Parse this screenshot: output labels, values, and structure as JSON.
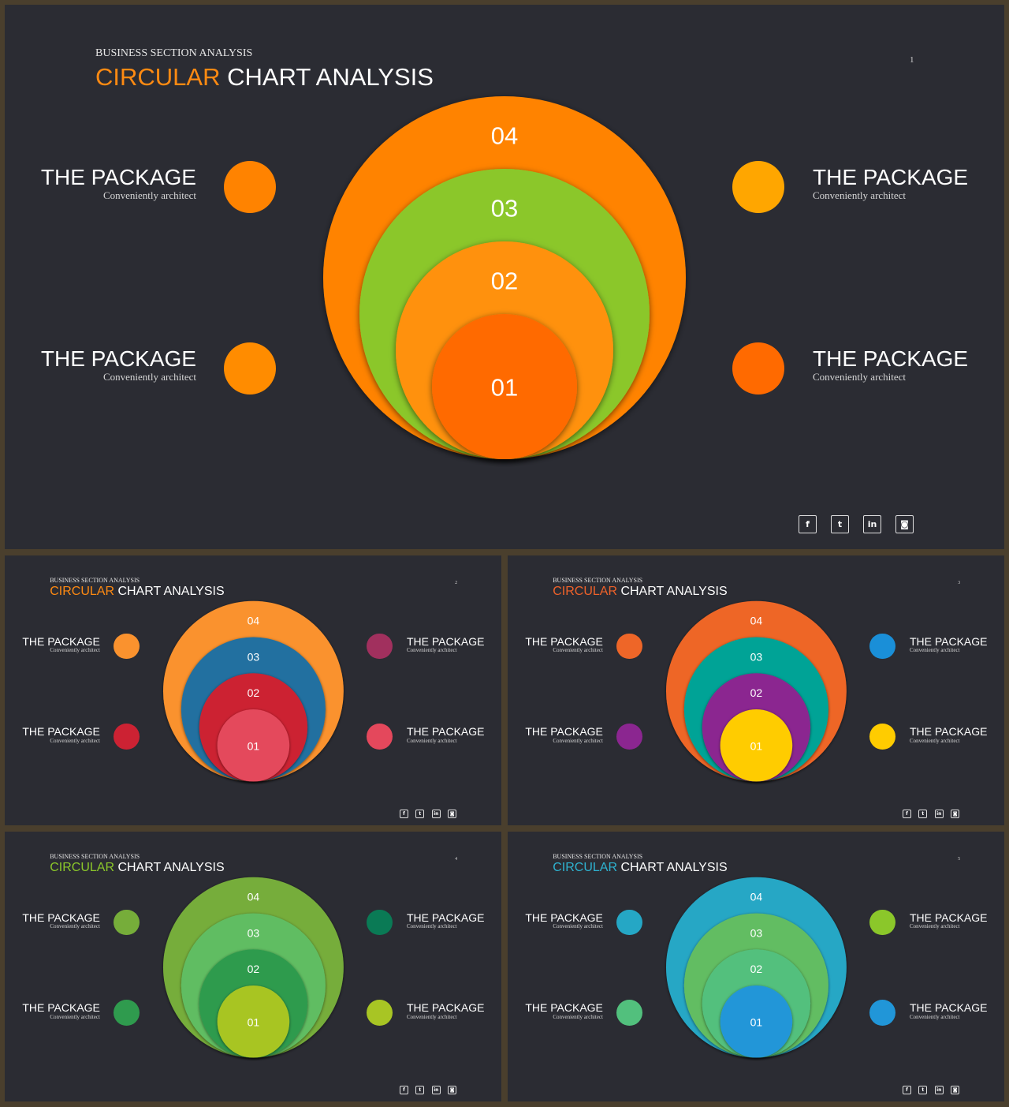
{
  "slides": [
    {
      "subtitle": "BUSINESS SECTION ANALYSIS",
      "title_accent": "CIRCULAR",
      "title_rest": " CHART ANALYSIS",
      "page": "1",
      "accent": "#ff8a12",
      "rings": [
        {
          "label": "04",
          "color": "#ff8300"
        },
        {
          "label": "03",
          "color": "#8bc72a"
        },
        {
          "label": "02",
          "color": "#ff9108"
        },
        {
          "label": "01",
          "color": "#ff6a00"
        }
      ],
      "items": [
        {
          "title": "THE PACKAGE",
          "desc": "Conveniently architect",
          "color": "#ff8300"
        },
        {
          "title": "THE PACKAGE",
          "desc": "Conveniently architect",
          "color": "#ffa600"
        },
        {
          "title": "THE PACKAGE",
          "desc": "Conveniently architect",
          "color": "#ff8c00"
        },
        {
          "title": "THE PACKAGE",
          "desc": "Conveniently architect",
          "color": "#ff6a00"
        }
      ]
    },
    {
      "subtitle": "BUSINESS SECTION ANALYSIS",
      "title_accent": "CIRCULAR",
      "title_rest": " CHART ANALYSIS",
      "page": "2",
      "accent": "#ff8a12",
      "rings": [
        {
          "label": "04",
          "color": "#fa922e"
        },
        {
          "label": "03",
          "color": "#2370a0"
        },
        {
          "label": "02",
          "color": "#cc2233"
        },
        {
          "label": "01",
          "color": "#e4485c"
        }
      ],
      "items": [
        {
          "title": "THE PACKAGE",
          "desc": "Conveniently architect",
          "color": "#fa922e"
        },
        {
          "title": "THE PACKAGE",
          "desc": "Conveniently architect",
          "color": "#a1305e"
        },
        {
          "title": "THE PACKAGE",
          "desc": "Conveniently architect",
          "color": "#cc2233"
        },
        {
          "title": "THE PACKAGE",
          "desc": "Conveniently architect",
          "color": "#e4485c"
        }
      ]
    },
    {
      "subtitle": "BUSINESS SECTION ANALYSIS",
      "title_accent": "CIRCULAR",
      "title_rest": " CHART ANALYSIS",
      "page": "3",
      "accent": "#f0622a",
      "rings": [
        {
          "label": "04",
          "color": "#ee6628"
        },
        {
          "label": "03",
          "color": "#00a396"
        },
        {
          "label": "02",
          "color": "#8b2690"
        },
        {
          "label": "01",
          "color": "#ffcc00"
        }
      ],
      "items": [
        {
          "title": "THE PACKAGE",
          "desc": "Conveniently architect",
          "color": "#ee6628"
        },
        {
          "title": "THE PACKAGE",
          "desc": "Conveniently architect",
          "color": "#1a8fd8"
        },
        {
          "title": "THE PACKAGE",
          "desc": "Conveniently architect",
          "color": "#8b2690"
        },
        {
          "title": "THE PACKAGE",
          "desc": "Conveniently architect",
          "color": "#ffcc00"
        }
      ]
    },
    {
      "subtitle": "BUSINESS SECTION ANALYSIS",
      "title_accent": "CIRCULAR",
      "title_rest": " CHART ANALYSIS",
      "page": "4",
      "accent": "#8bc72a",
      "rings": [
        {
          "label": "04",
          "color": "#76ad3a"
        },
        {
          "label": "03",
          "color": "#60bd62"
        },
        {
          "label": "02",
          "color": "#2f9b4e"
        },
        {
          "label": "01",
          "color": "#a8c524"
        }
      ],
      "items": [
        {
          "title": "THE PACKAGE",
          "desc": "Conveniently architect",
          "color": "#76ad3a"
        },
        {
          "title": "THE PACKAGE",
          "desc": "Conveniently architect",
          "color": "#0a7a55"
        },
        {
          "title": "THE PACKAGE",
          "desc": "Conveniently architect",
          "color": "#2f9b4e"
        },
        {
          "title": "THE PACKAGE",
          "desc": "Conveniently architect",
          "color": "#a8c524"
        }
      ]
    },
    {
      "subtitle": "BUSINESS SECTION ANALYSIS",
      "title_accent": "CIRCULAR",
      "title_rest": " CHART ANALYSIS",
      "page": "5",
      "accent": "#2eb2d0",
      "rings": [
        {
          "label": "04",
          "color": "#25a7c5"
        },
        {
          "label": "03",
          "color": "#62bd62"
        },
        {
          "label": "02",
          "color": "#52c07d"
        },
        {
          "label": "01",
          "color": "#2196d8"
        }
      ],
      "items": [
        {
          "title": "THE PACKAGE",
          "desc": "Conveniently architect",
          "color": "#25a7c5"
        },
        {
          "title": "THE PACKAGE",
          "desc": "Conveniently architect",
          "color": "#8bc72a"
        },
        {
          "title": "THE PACKAGE",
          "desc": "Conveniently architect",
          "color": "#52c07d"
        },
        {
          "title": "THE PACKAGE",
          "desc": "Conveniently architect",
          "color": "#2196d8"
        }
      ]
    }
  ],
  "social": [
    {
      "icon": "facebook-icon",
      "glyph": "f"
    },
    {
      "icon": "twitter-icon",
      "glyph": "t"
    },
    {
      "icon": "linkedin-icon",
      "glyph": "in"
    },
    {
      "icon": "instagram-icon",
      "glyph": "◙"
    }
  ]
}
